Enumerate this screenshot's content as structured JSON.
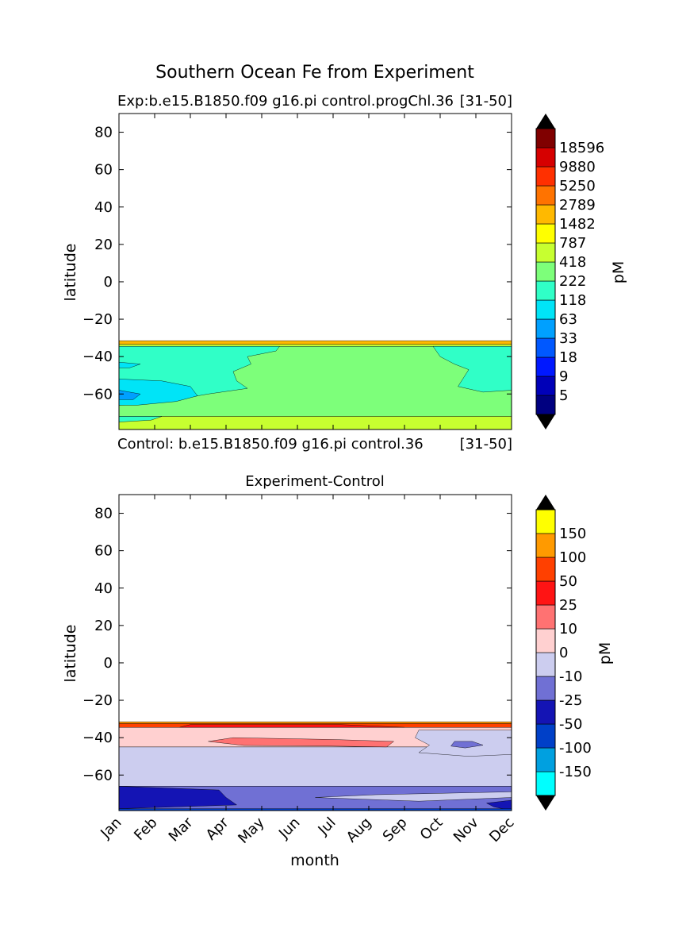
{
  "figure_title": "Southern Ocean Fe from Experiment",
  "chart_data": [
    {
      "type": "heatmap",
      "title_left": "Exp:b.e15.B1850.f09 g16.pi control.progChl.36",
      "title_right": "[31-50]",
      "bottom_left": "Control: b.e15.B1850.f09 g16.pi control.36",
      "bottom_right": "[31-50]",
      "ylabel": "latitude",
      "ylim": [
        -79,
        90
      ],
      "yticks": [
        "80",
        "60",
        "40",
        "20",
        "0",
        "−20",
        "−40",
        "−60"
      ],
      "colorbar": {
        "unit": "pM",
        "levels": [
          "18596",
          "9880",
          "5250",
          "2789",
          "1482",
          "787",
          "418",
          "222",
          "118",
          "63",
          "33",
          "18",
          "9",
          "5"
        ],
        "colors": [
          "#000080",
          "#0000b8",
          "#0018ff",
          "#0058ff",
          "#00a0ff",
          "#00e4f7",
          "#30ffc7",
          "#7dff7a",
          "#c7ff30",
          "#ffff00",
          "#ffb900",
          "#ff7300",
          "#ff3000",
          "#d60000",
          "#800000"
        ],
        "extend_color": "#000000"
      },
      "bands": [
        {
          "from": -33.5,
          "to": -31.5,
          "color": "#ffb900"
        },
        {
          "from": -34.5,
          "to": -33.5,
          "color": "#c7ff30"
        },
        {
          "from": -72,
          "to": -34.5,
          "color": "#7dff7a"
        },
        {
          "from": -79,
          "to": -72,
          "color": "#c7ff30"
        }
      ],
      "regions": [
        {
          "color": "#30ffc7",
          "points": [
            [
              0,
              -34.5
            ],
            [
              4.5,
              -34.5
            ],
            [
              4.4,
              -37
            ],
            [
              3.6,
              -40
            ],
            [
              3.7,
              -44
            ],
            [
              3.2,
              -48
            ],
            [
              3.3,
              -53
            ],
            [
              3.6,
              -57
            ],
            [
              2.5,
              -60
            ],
            [
              1.3,
              -64
            ],
            [
              0,
              -66
            ]
          ]
        },
        {
          "color": "#30ffc7",
          "points": [
            [
              11,
              -34.5
            ],
            [
              8.8,
              -34.5
            ],
            [
              9,
              -40
            ],
            [
              9.4,
              -44
            ],
            [
              9.8,
              -47
            ],
            [
              9.5,
              -56
            ],
            [
              10.2,
              -59
            ],
            [
              11,
              -58
            ]
          ]
        },
        {
          "color": "#00e4f7",
          "points": [
            [
              0,
              -52
            ],
            [
              1.2,
              -53
            ],
            [
              2,
              -56
            ],
            [
              2.2,
              -61
            ],
            [
              1.6,
              -64
            ],
            [
              0.5,
              -66
            ],
            [
              0,
              -66
            ]
          ]
        },
        {
          "color": "#00e4f7",
          "points": [
            [
              0,
              -43
            ],
            [
              0.6,
              -44
            ],
            [
              0.3,
              -46
            ],
            [
              0,
              -46
            ]
          ]
        },
        {
          "color": "#00a0ff",
          "points": [
            [
              0,
              -58
            ],
            [
              0.6,
              -60
            ],
            [
              0.4,
              -63
            ],
            [
              0,
              -63
            ]
          ]
        },
        {
          "color": "#30ffc7",
          "points": [
            [
              0,
              -72
            ],
            [
              1.2,
              -72
            ],
            [
              0.9,
              -74
            ],
            [
              0,
              -75
            ]
          ]
        }
      ]
    },
    {
      "type": "heatmap",
      "title": "Experiment-Control",
      "ylabel": "latitude",
      "xlabel": "month",
      "ylim": [
        -79,
        90
      ],
      "yticks": [
        "80",
        "60",
        "40",
        "20",
        "0",
        "−20",
        "−40",
        "−60"
      ],
      "categories": [
        "Jan",
        "Feb",
        "Mar",
        "Apr",
        "May",
        "Jun",
        "Jul",
        "Aug",
        "Sep",
        "Oct",
        "Nov",
        "Dec"
      ],
      "colorbar": {
        "unit": "pM",
        "levels": [
          "150",
          "100",
          "50",
          "25",
          "10",
          "0",
          "-10",
          "-25",
          "-50",
          "-100",
          "-150"
        ],
        "colors": [
          "#00ffff",
          "#00a0e0",
          "#0040c8",
          "#1414b4",
          "#7070d4",
          "#cccdef",
          "#ffd0d0",
          "#ff7272",
          "#ff1414",
          "#ff4000",
          "#ff9a00",
          "#ffff00"
        ],
        "extend_color": "#000000"
      },
      "bands": [
        {
          "from": -32.5,
          "to": -31.5,
          "color": "#ff9a00"
        },
        {
          "from": -34.5,
          "to": -32.5,
          "color": "#ff4000"
        },
        {
          "from": -45,
          "to": -34.5,
          "color": "#ffd0d0"
        },
        {
          "from": -66,
          "to": -45,
          "color": "#cccdef"
        },
        {
          "from": -79,
          "to": -66,
          "color": "#7070d4"
        }
      ],
      "regions": [
        {
          "color": "#ff1414",
          "points": [
            [
              1.7,
              -34.5
            ],
            [
              2.0,
              -33
            ],
            [
              6.2,
              -33
            ],
            [
              8.0,
              -34.5
            ]
          ]
        },
        {
          "color": "#cccdef",
          "points": [
            [
              11,
              -36
            ],
            [
              8.4,
              -36
            ],
            [
              8.3,
              -40
            ],
            [
              8.7,
              -44
            ],
            [
              8.4,
              -48
            ],
            [
              9.8,
              -50
            ],
            [
              11,
              -49
            ]
          ]
        },
        {
          "color": "#7070d4",
          "points": [
            [
              9.4,
              -42
            ],
            [
              9.9,
              -42
            ],
            [
              10.2,
              -44
            ],
            [
              9.7,
              -45.5
            ],
            [
              9.3,
              -44.5
            ]
          ]
        },
        {
          "color": "#ff7272",
          "points": [
            [
              2.5,
              -42
            ],
            [
              3.2,
              -40
            ],
            [
              6,
              -41
            ],
            [
              7.7,
              -42
            ],
            [
              7.5,
              -45
            ],
            [
              6,
              -44.5
            ],
            [
              3.5,
              -44.2
            ]
          ]
        },
        {
          "color": "#1414b4",
          "points": [
            [
              0,
              -66
            ],
            [
              2.8,
              -68
            ],
            [
              3.0,
              -72
            ],
            [
              3.3,
              -76
            ],
            [
              0,
              -78
            ]
          ]
        },
        {
          "color": "#cccdef",
          "points": [
            [
              5.5,
              -72
            ],
            [
              7.2,
              -70.5
            ],
            [
              11,
              -69
            ],
            [
              11,
              -72
            ],
            [
              8.4,
              -74
            ]
          ]
        },
        {
          "color": "#1414b4",
          "points": [
            [
              10.3,
              -75
            ],
            [
              11,
              -73.5
            ],
            [
              11,
              -79
            ],
            [
              10.5,
              -77
            ]
          ]
        },
        {
          "color": "#0040c8",
          "points": [
            [
              0,
              -78
            ],
            [
              11,
              -78
            ],
            [
              11,
              -79
            ],
            [
              0,
              -79
            ]
          ]
        }
      ]
    }
  ]
}
